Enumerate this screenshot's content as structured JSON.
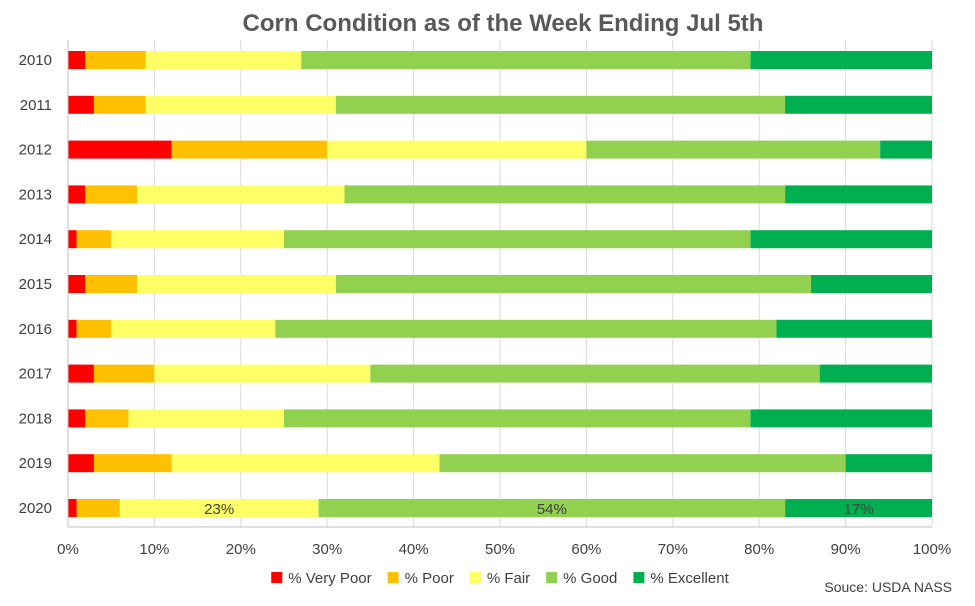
{
  "chart_data": {
    "type": "bar",
    "orientation": "horizontal",
    "stacked": true,
    "title": "Corn Condition as of the Week Ending Jul 5th",
    "source": "Souce: USDA NASS",
    "categories": [
      "2010",
      "2011",
      "2012",
      "2013",
      "2014",
      "2015",
      "2016",
      "2017",
      "2018",
      "2019",
      "2020"
    ],
    "series": [
      {
        "name": "% Very Poor",
        "color": "#ff0000",
        "values": [
          2,
          3,
          12,
          2,
          1,
          2,
          1,
          3,
          2,
          3,
          1
        ]
      },
      {
        "name": "% Poor",
        "color": "#ffc000",
        "values": [
          7,
          6,
          18,
          6,
          4,
          6,
          4,
          7,
          5,
          9,
          5
        ]
      },
      {
        "name": "% Fair",
        "color": "#ffff66",
        "values": [
          18,
          22,
          30,
          24,
          20,
          23,
          19,
          25,
          18,
          31,
          23
        ]
      },
      {
        "name": "% Good",
        "color": "#92d050",
        "values": [
          52,
          52,
          34,
          51,
          54,
          55,
          58,
          52,
          54,
          47,
          54
        ]
      },
      {
        "name": "% Excellent",
        "color": "#00b050",
        "values": [
          21,
          17,
          6,
          17,
          21,
          14,
          18,
          13,
          21,
          10,
          17
        ]
      }
    ],
    "data_labels": [
      {
        "category": "2020",
        "series": "% Fair",
        "text": "23%"
      },
      {
        "category": "2020",
        "series": "% Good",
        "text": "54%"
      },
      {
        "category": "2020",
        "series": "% Excellent",
        "text": "17%"
      }
    ],
    "xlim": [
      0,
      100
    ],
    "x_ticks": [
      "0%",
      "10%",
      "20%",
      "30%",
      "40%",
      "50%",
      "60%",
      "70%",
      "80%",
      "90%",
      "100%"
    ],
    "grid": true,
    "legend_position": "bottom"
  }
}
